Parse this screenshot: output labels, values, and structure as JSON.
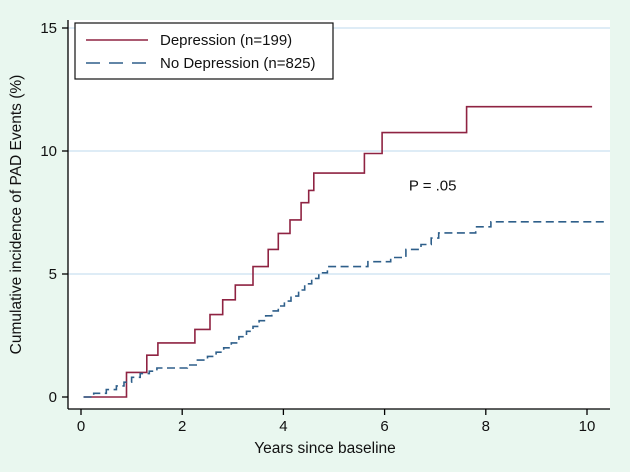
{
  "figure": {
    "background_color": "#e9f7ef",
    "plot_background_color": "#ffffff",
    "gridline_color": "#d9e9f5",
    "axis_color": "#000000",
    "text_color": "#111111"
  },
  "chart_data": {
    "type": "line",
    "subtype": "step",
    "title": "",
    "xlabel": "Years since baseline",
    "ylabel": "Cumulative incidence of PAD Events (%)",
    "xlim": [
      0,
      10.5
    ],
    "ylim": [
      0,
      15.5
    ],
    "xticks": [
      0,
      2,
      4,
      6,
      8,
      10
    ],
    "yticks": [
      0,
      5,
      10,
      15
    ],
    "grid": {
      "horizontal": true,
      "vertical": false,
      "gridline_yvalues": [
        5,
        10,
        15
      ]
    },
    "annotation": {
      "text": "P = .05",
      "x": 6.95,
      "y": 8.6
    },
    "legend": {
      "position": "top-left",
      "border": true,
      "entries": [
        {
          "label": "Depression (n=199)",
          "line_style": "solid",
          "color": "#8f2342"
        },
        {
          "label": "No Depression (n=825)",
          "line_style": "dashed",
          "color": "#2e5f8a"
        }
      ]
    },
    "series": [
      {
        "name": "Depression (n=199)",
        "color": "#8f2342",
        "style": "solid",
        "end_x": 10.1,
        "points": [
          [
            0.05,
            0
          ],
          [
            0.9,
            1.0
          ],
          [
            1.3,
            1.7
          ],
          [
            1.52,
            2.2
          ],
          [
            2.25,
            2.75
          ],
          [
            2.55,
            3.35
          ],
          [
            2.8,
            3.95
          ],
          [
            3.05,
            4.55
          ],
          [
            3.4,
            5.3
          ],
          [
            3.7,
            6.0
          ],
          [
            3.9,
            6.65
          ],
          [
            4.13,
            7.2
          ],
          [
            4.35,
            7.9
          ],
          [
            4.5,
            8.4
          ],
          [
            4.6,
            9.1
          ],
          [
            5.6,
            9.9
          ],
          [
            5.95,
            10.75
          ],
          [
            7.62,
            11.8
          ]
        ]
      },
      {
        "name": "No Depression (n=825)",
        "color": "#2e5f8a",
        "style": "dashed",
        "end_x": 10.36,
        "points": [
          [
            0.05,
            0
          ],
          [
            0.25,
            0.15
          ],
          [
            0.5,
            0.3
          ],
          [
            0.7,
            0.45
          ],
          [
            0.85,
            0.6
          ],
          [
            1.0,
            0.8
          ],
          [
            1.17,
            0.95
          ],
          [
            1.35,
            1.05
          ],
          [
            1.5,
            1.18
          ],
          [
            2.1,
            1.3
          ],
          [
            2.3,
            1.5
          ],
          [
            2.5,
            1.65
          ],
          [
            2.67,
            1.82
          ],
          [
            2.82,
            2.0
          ],
          [
            2.97,
            2.2
          ],
          [
            3.12,
            2.45
          ],
          [
            3.27,
            2.67
          ],
          [
            3.4,
            2.87
          ],
          [
            3.52,
            3.1
          ],
          [
            3.65,
            3.3
          ],
          [
            3.77,
            3.5
          ],
          [
            3.9,
            3.7
          ],
          [
            4.02,
            3.9
          ],
          [
            4.15,
            4.1
          ],
          [
            4.3,
            4.35
          ],
          [
            4.42,
            4.6
          ],
          [
            4.56,
            4.82
          ],
          [
            4.7,
            5.05
          ],
          [
            4.87,
            5.3
          ],
          [
            5.67,
            5.5
          ],
          [
            6.12,
            5.67
          ],
          [
            6.42,
            6.0
          ],
          [
            6.72,
            6.2
          ],
          [
            6.92,
            6.46
          ],
          [
            7.07,
            6.67
          ],
          [
            7.8,
            6.92
          ],
          [
            8.1,
            7.12
          ]
        ]
      }
    ]
  }
}
